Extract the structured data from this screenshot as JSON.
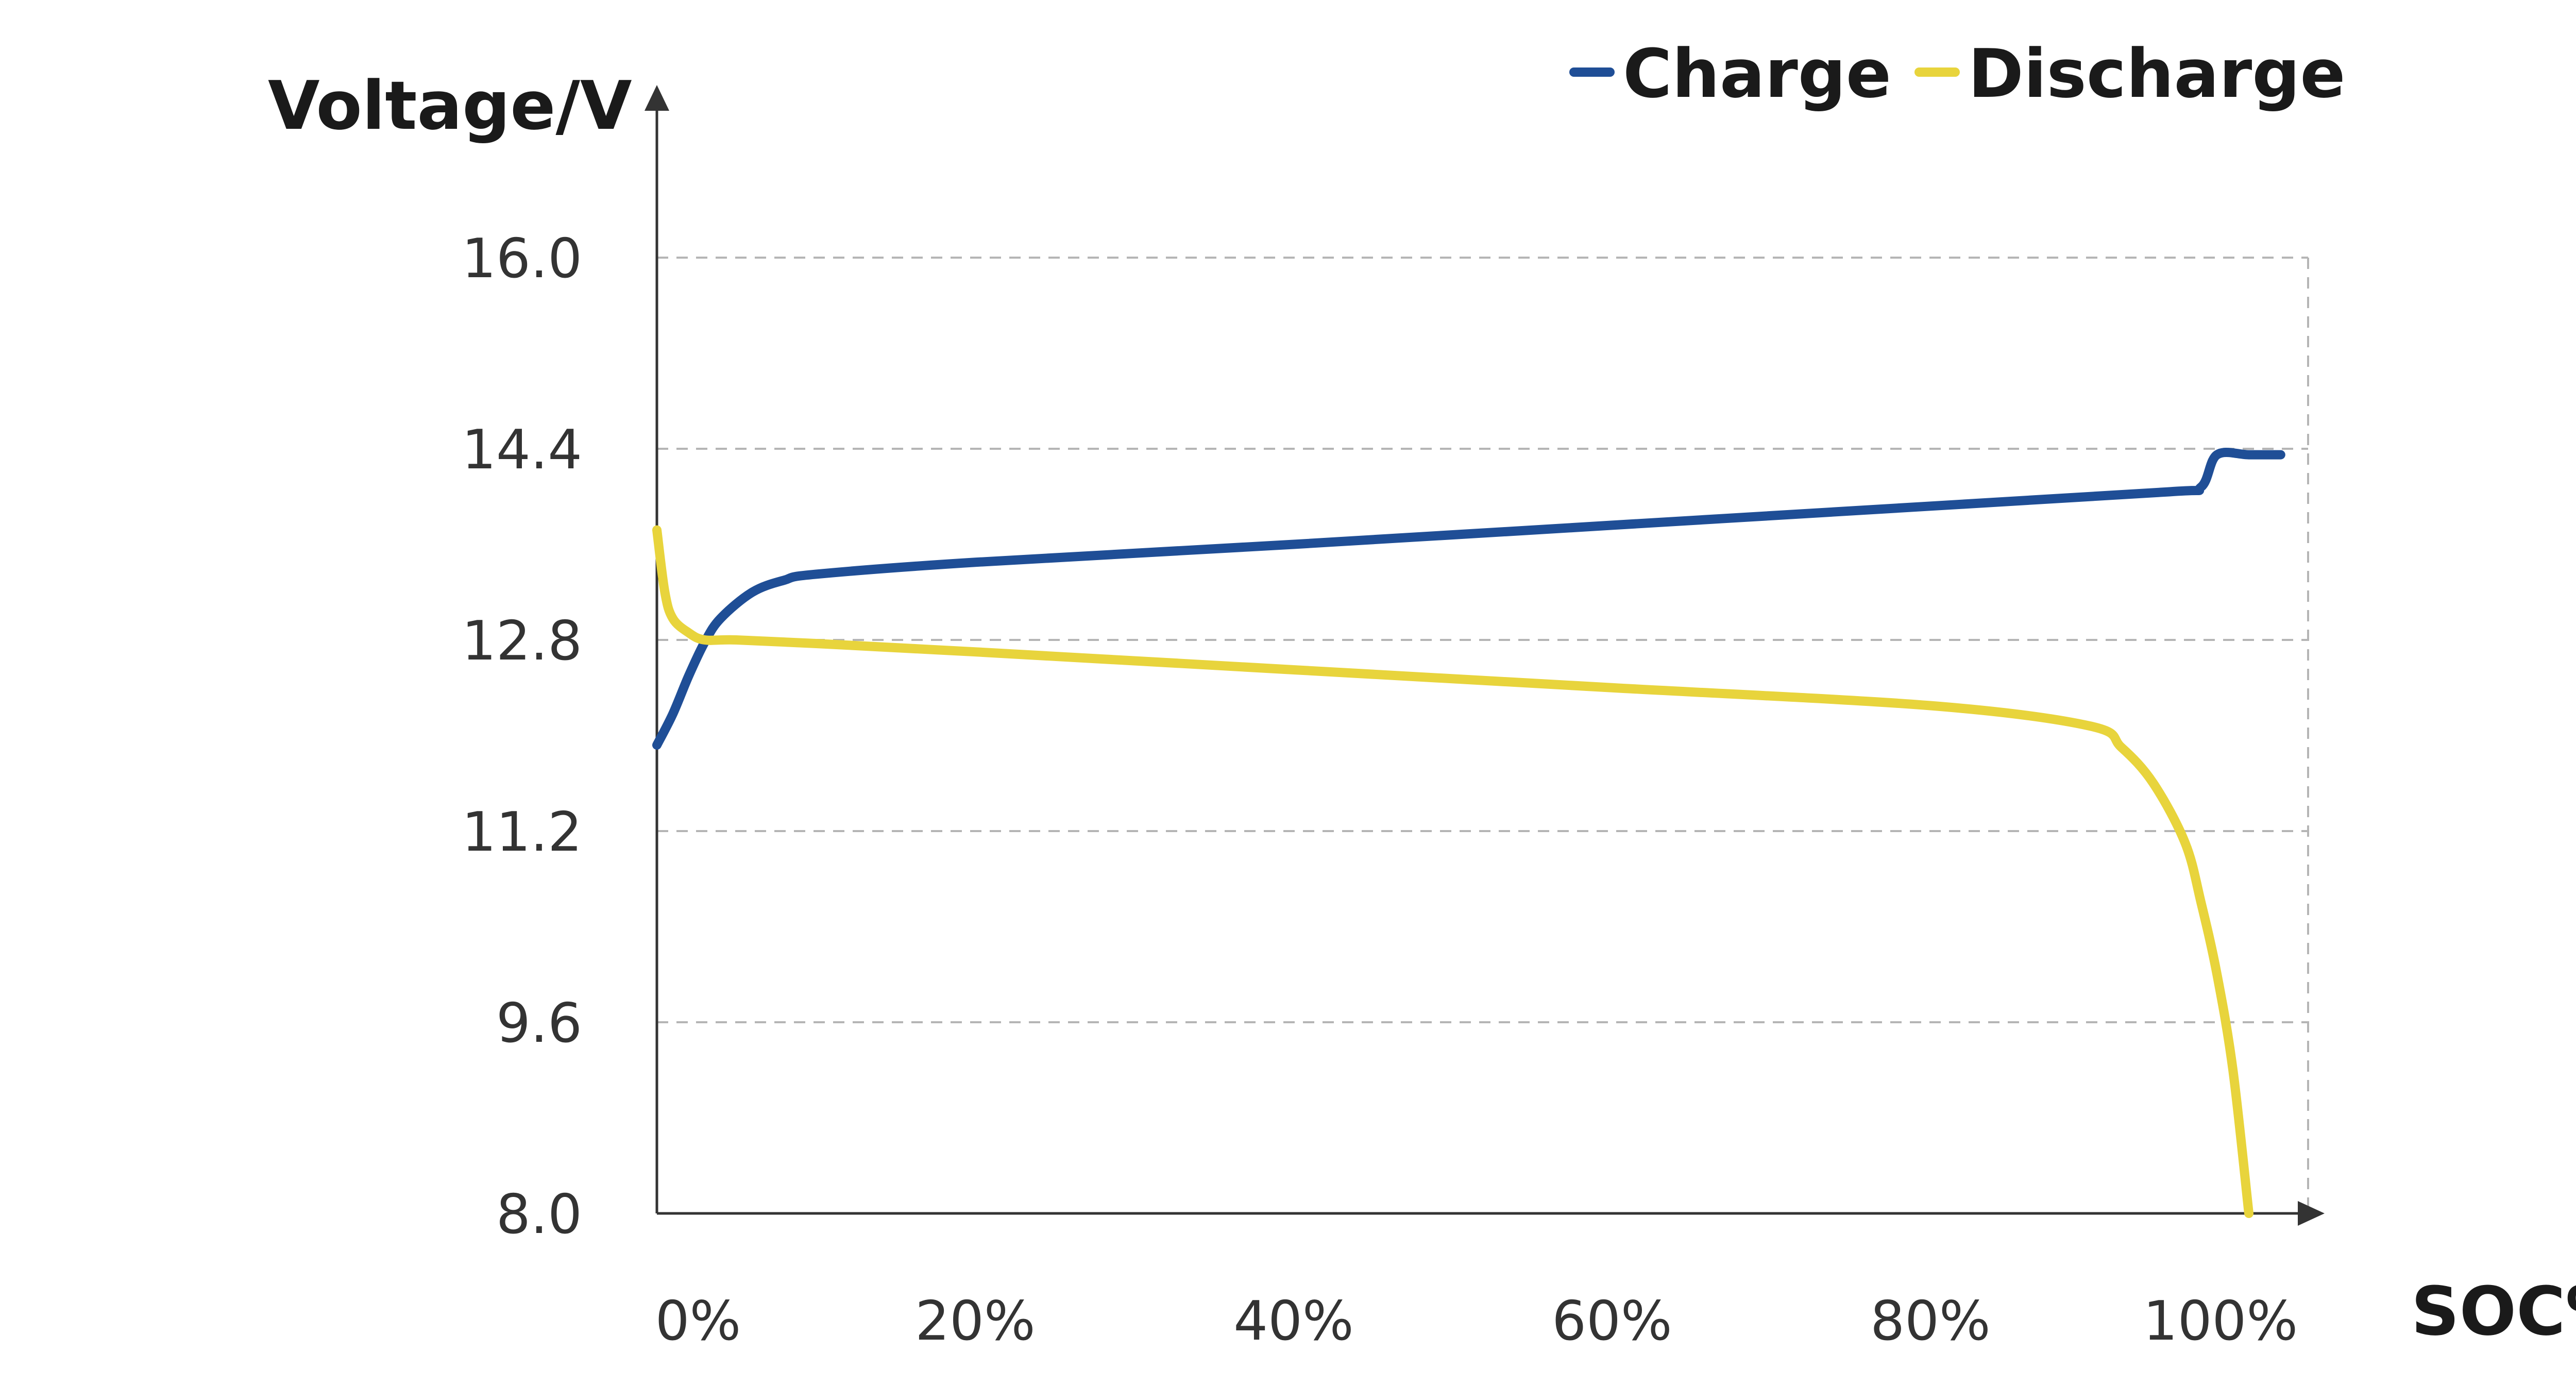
{
  "chart_data": {
    "type": "line",
    "xlabel": "SOC%",
    "ylabel": "Voltage/V",
    "xlim": [
      0,
      100
    ],
    "ylim": [
      8.0,
      16.0
    ],
    "x_ticks": [
      "0%",
      "20%",
      "40%",
      "60%",
      "80%",
      "100%"
    ],
    "y_ticks": [
      "8.0",
      "9.6",
      "11.2",
      "12.8",
      "14.4",
      "16.0"
    ],
    "grid": "horizontal dashed",
    "legend_position": "top-right",
    "series": [
      {
        "name": "Charge",
        "color": "#1f4e96",
        "x": [
          0,
          1,
          2,
          3,
          4,
          6,
          8,
          10,
          20,
          40,
          60,
          80,
          95,
          97,
          98,
          100,
          102
        ],
        "y": [
          11.92,
          12.18,
          12.5,
          12.78,
          12.98,
          13.2,
          13.3,
          13.35,
          13.45,
          13.6,
          13.76,
          13.92,
          14.04,
          14.08,
          14.35,
          14.35,
          14.35
        ]
      },
      {
        "name": "Discharge",
        "color": "#e8d43c",
        "x": [
          0,
          0.5,
          1,
          2,
          3,
          5,
          10,
          20,
          40,
          60,
          80,
          90,
          92,
          94,
          96,
          97,
          98,
          99,
          100
        ],
        "y": [
          13.72,
          13.2,
          12.98,
          12.86,
          12.8,
          12.8,
          12.77,
          12.7,
          12.55,
          12.4,
          12.25,
          12.08,
          11.9,
          11.6,
          11.1,
          10.6,
          10.0,
          9.2,
          8.0
        ]
      }
    ]
  }
}
